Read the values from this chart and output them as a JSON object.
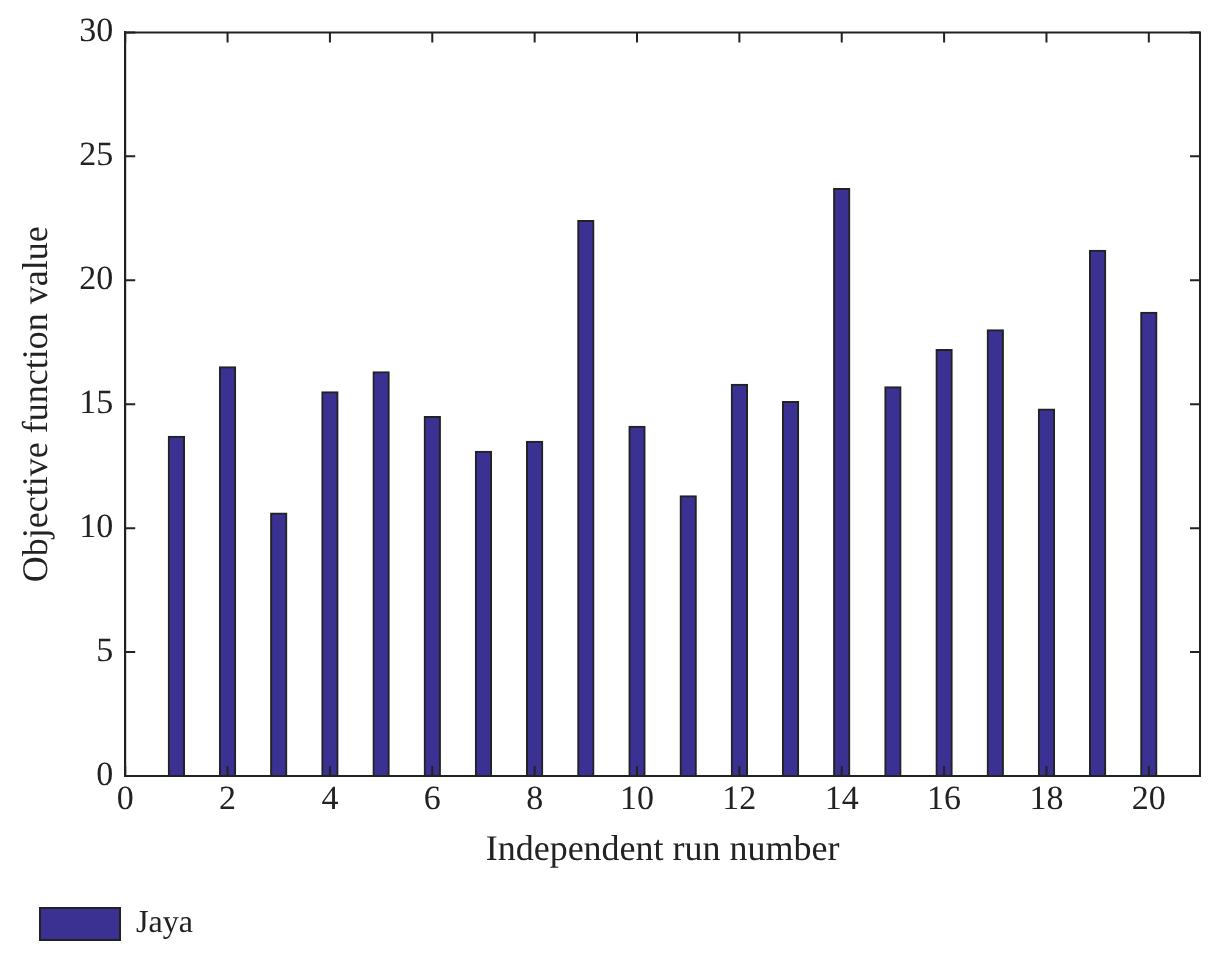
{
  "chart_data": {
    "type": "bar",
    "xlabel": "Independent run number",
    "ylabel": "Objective function value",
    "x": [
      1,
      2,
      3,
      4,
      5,
      6,
      7,
      8,
      9,
      10,
      11,
      12,
      13,
      14,
      15,
      16,
      17,
      18,
      19,
      20
    ],
    "series": [
      {
        "name": "Jaya",
        "color": "#3a3192",
        "values": [
          13.7,
          16.5,
          10.6,
          15.5,
          16.3,
          14.5,
          13.1,
          13.5,
          22.4,
          14.1,
          11.3,
          15.8,
          15.1,
          23.7,
          15.7,
          17.2,
          18.0,
          14.8,
          21.2,
          18.7
        ]
      }
    ],
    "xlim": [
      0,
      21
    ],
    "xticks": [
      0,
      2,
      4,
      6,
      8,
      10,
      12,
      14,
      16,
      18,
      20
    ],
    "ylim": [
      0,
      30
    ],
    "yticks": [
      0,
      5,
      10,
      15,
      20,
      25,
      30
    ],
    "grid": false,
    "legend": "bottom left"
  }
}
